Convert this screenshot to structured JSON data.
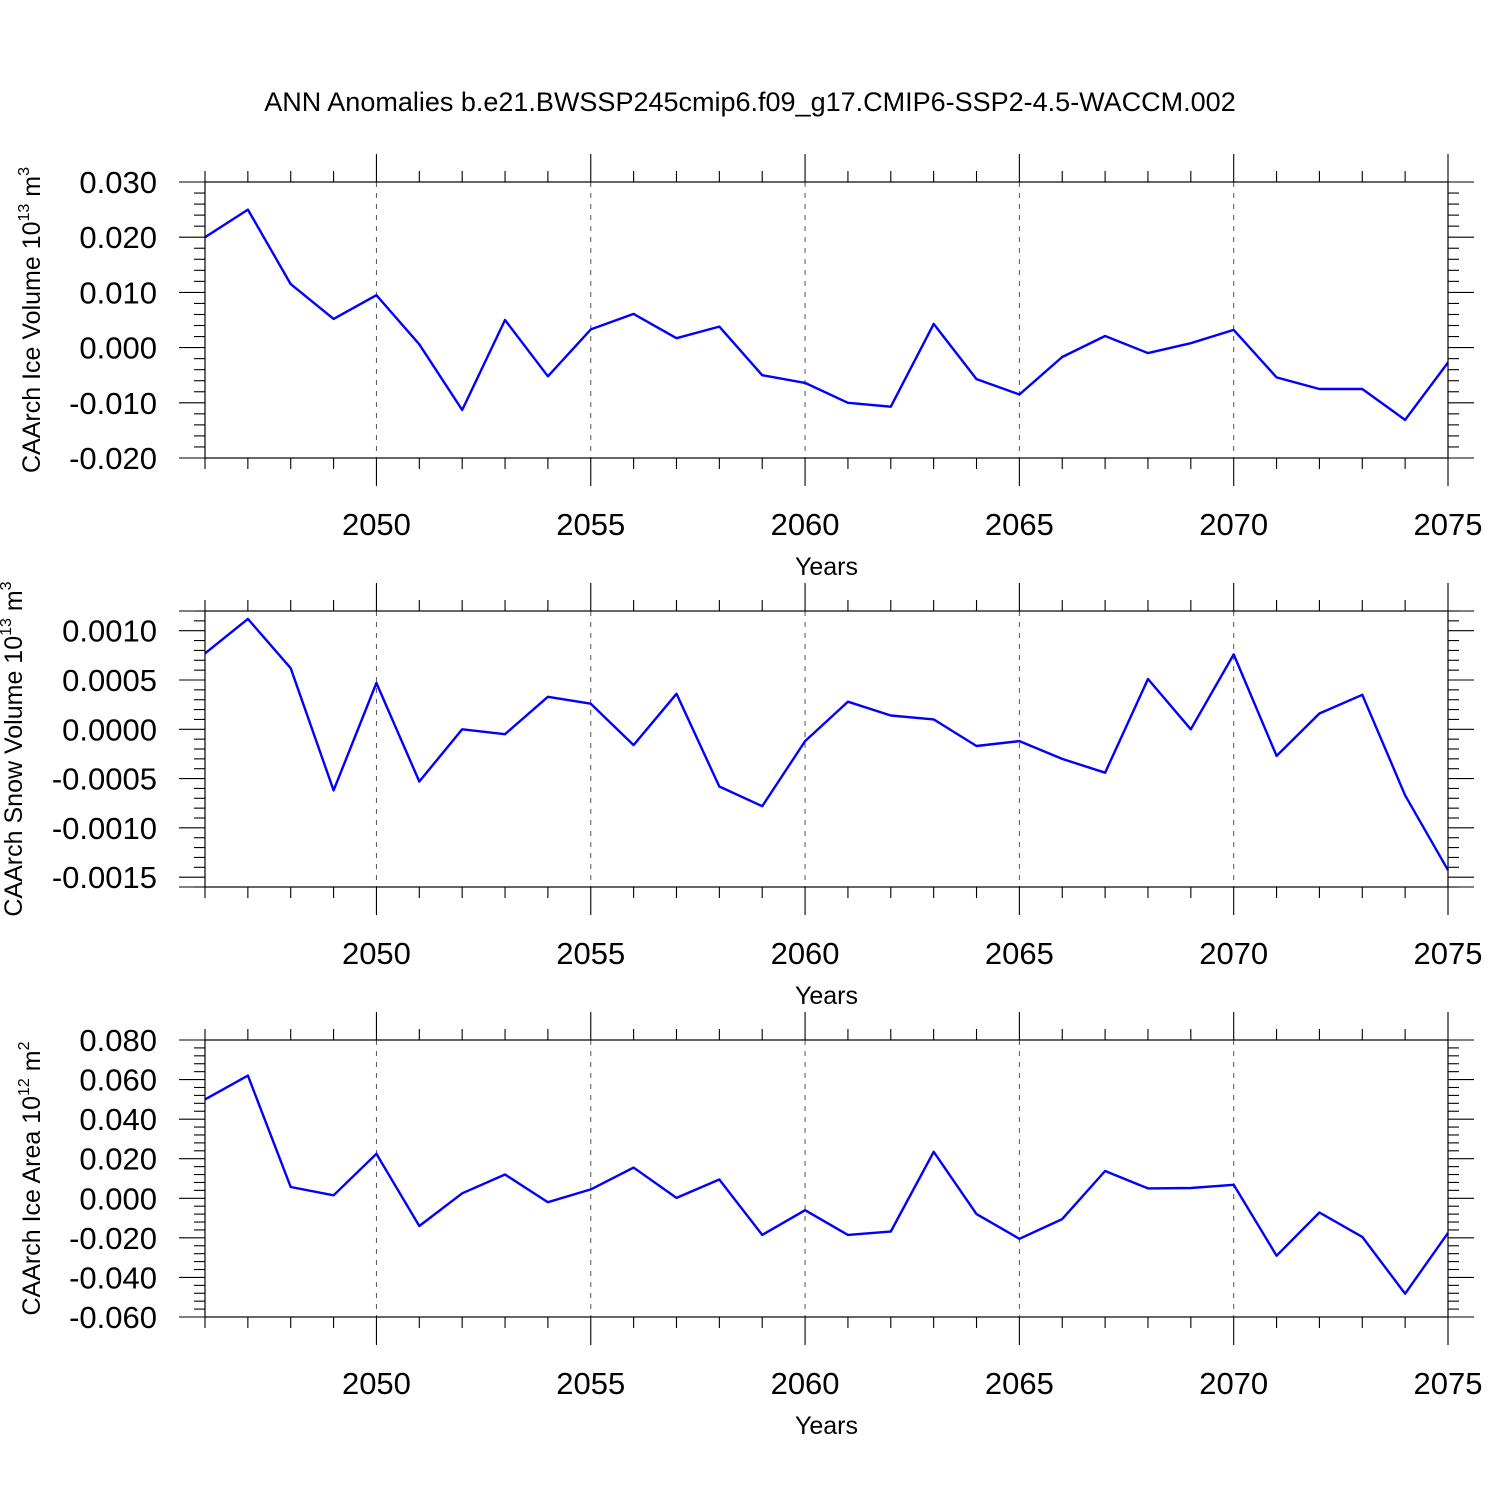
{
  "figure": {
    "title": "ANN Anomalies b.e21.BWSSP245cmip6.f09_g17.CMIP6-SSP2-4.5-WACCM.002"
  },
  "chart_data": [
    {
      "type": "line",
      "title": "",
      "xlabel": "Years",
      "ylabel": "CAArch Ice Volume 10",
      "ylabel_exp": "13",
      "ylabel_unit": "m",
      "ylabel_unit_exp": "3",
      "xlim": [
        2046,
        2075
      ],
      "ylim": [
        -0.02,
        0.03
      ],
      "x_ticks": [
        2050,
        2055,
        2060,
        2065,
        2070,
        2075
      ],
      "x_tick_labels": [
        "2050",
        "2055",
        "2060",
        "2065",
        "2070",
        "2075"
      ],
      "y_ticks": [
        0.03,
        0.02,
        0.01,
        0.0,
        -0.01,
        -0.02
      ],
      "y_tick_labels": [
        "0.030",
        "0.020",
        "0.010",
        "0.000",
        "-0.010",
        "-0.020"
      ],
      "grid": "vertical dashed at major x ticks",
      "line_color": "#0000ff",
      "x": [
        2046,
        2047,
        2048,
        2049,
        2050,
        2051,
        2052,
        2053,
        2054,
        2055,
        2056,
        2057,
        2058,
        2059,
        2060,
        2061,
        2062,
        2063,
        2064,
        2065,
        2066,
        2067,
        2068,
        2069,
        2070,
        2071,
        2072,
        2073,
        2074,
        2075
      ],
      "values": [
        0.02,
        0.025,
        0.0115,
        0.0052,
        0.0095,
        0.0006,
        -0.0113,
        0.005,
        -0.0052,
        0.0033,
        0.0061,
        0.0017,
        0.0038,
        -0.005,
        -0.0064,
        -0.01,
        -0.0107,
        0.0043,
        -0.0057,
        -0.0085,
        -0.0017,
        0.0021,
        -0.001,
        0.0008,
        0.0032,
        -0.0054,
        -0.0075,
        -0.0075,
        -0.0131,
        -0.0027
      ]
    },
    {
      "type": "line",
      "title": "",
      "xlabel": "Years",
      "ylabel": "CAArch Snow Volume 10",
      "ylabel_exp": "13",
      "ylabel_unit": "m",
      "ylabel_unit_exp": "3",
      "xlim": [
        2046,
        2075
      ],
      "ylim": [
        -0.0016,
        0.0012
      ],
      "x_ticks": [
        2050,
        2055,
        2060,
        2065,
        2070,
        2075
      ],
      "x_tick_labels": [
        "2050",
        "2055",
        "2060",
        "2065",
        "2070",
        "2075"
      ],
      "y_ticks": [
        0.001,
        0.0005,
        0.0,
        -0.0005,
        -0.001,
        -0.0015
      ],
      "y_tick_labels": [
        "0.0010",
        "0.0005",
        "0.0000",
        "-0.0005",
        "-0.0010",
        "-0.0015"
      ],
      "grid": "vertical dashed at major x ticks",
      "line_color": "#0000ff",
      "x": [
        2046,
        2047,
        2048,
        2049,
        2050,
        2051,
        2052,
        2053,
        2054,
        2055,
        2056,
        2057,
        2058,
        2059,
        2060,
        2061,
        2062,
        2063,
        2064,
        2065,
        2066,
        2067,
        2068,
        2069,
        2070,
        2071,
        2072,
        2073,
        2074,
        2075
      ],
      "values": [
        0.00077,
        0.00112,
        0.00062,
        -0.00062,
        0.00047,
        -0.00053,
        0.0,
        -5e-05,
        0.00033,
        0.00026,
        -0.00016,
        0.00036,
        -0.00058,
        -0.00078,
        -0.00012,
        0.00028,
        0.00014,
        0.0001,
        -0.00017,
        -0.00012,
        -0.0003,
        -0.00044,
        0.00051,
        0.0,
        0.00076,
        -0.00027,
        0.00016,
        0.00035,
        -0.00067,
        -0.00143
      ]
    },
    {
      "type": "line",
      "title": "",
      "xlabel": "Years",
      "ylabel": "CAArch Ice Area 10",
      "ylabel_exp": "12",
      "ylabel_unit": "m",
      "ylabel_unit_exp": "2",
      "xlim": [
        2046,
        2075
      ],
      "ylim": [
        -0.06,
        0.08
      ],
      "x_ticks": [
        2050,
        2055,
        2060,
        2065,
        2070,
        2075
      ],
      "x_tick_labels": [
        "2050",
        "2055",
        "2060",
        "2065",
        "2070",
        "2075"
      ],
      "y_ticks": [
        0.08,
        0.06,
        0.04,
        0.02,
        0.0,
        -0.02,
        -0.04,
        -0.06
      ],
      "y_tick_labels": [
        "0.080",
        "0.060",
        "0.040",
        "0.020",
        "0.000",
        "-0.020",
        "-0.040",
        "-0.060"
      ],
      "grid": "vertical dashed at major x ticks",
      "line_color": "#0000ff",
      "x": [
        2046,
        2047,
        2048,
        2049,
        2050,
        2051,
        2052,
        2053,
        2054,
        2055,
        2056,
        2057,
        2058,
        2059,
        2060,
        2061,
        2062,
        2063,
        2064,
        2065,
        2066,
        2067,
        2068,
        2069,
        2070,
        2071,
        2072,
        2073,
        2074,
        2075
      ],
      "values": [
        0.05,
        0.062,
        0.0057,
        0.0015,
        0.0225,
        -0.014,
        0.0025,
        0.012,
        -0.002,
        0.0045,
        0.0155,
        0.0002,
        0.0095,
        -0.0185,
        -0.006,
        -0.0185,
        -0.0168,
        0.0235,
        -0.008,
        -0.0205,
        -0.0105,
        0.0138,
        0.005,
        0.0052,
        0.0068,
        -0.029,
        -0.0072,
        -0.0195,
        -0.0482,
        -0.0175
      ]
    }
  ]
}
